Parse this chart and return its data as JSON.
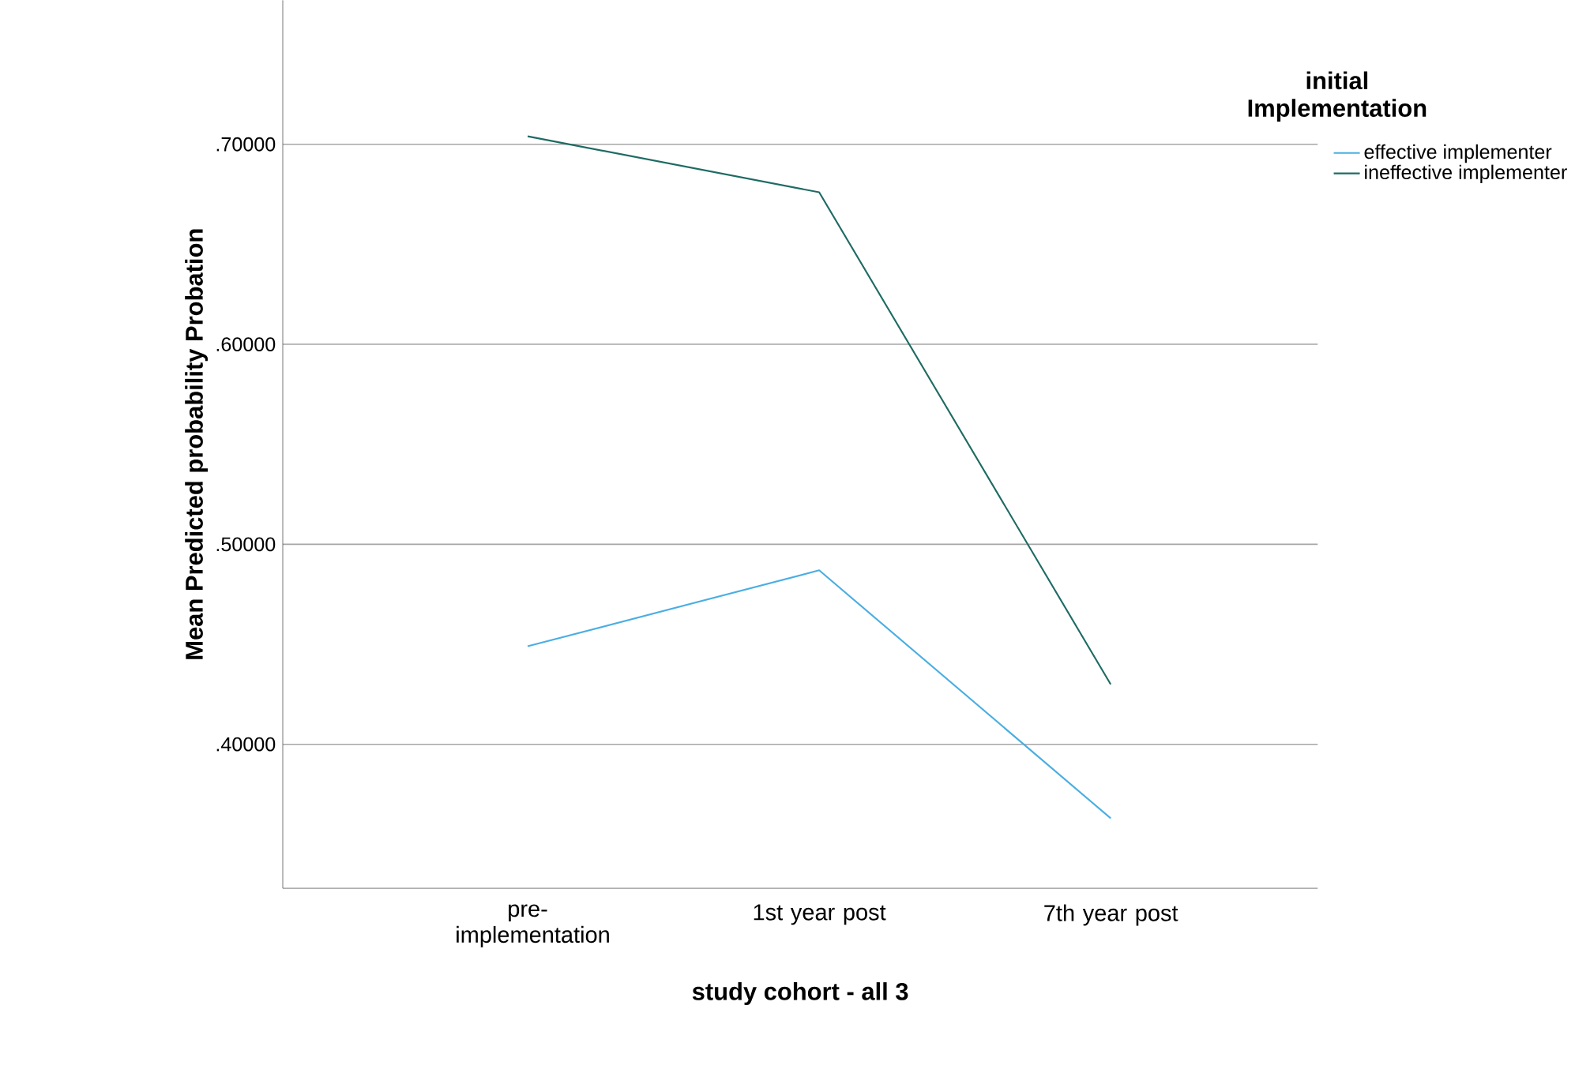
{
  "chart_data": {
    "type": "line",
    "xlabel": "study cohort - all 3",
    "ylabel": "Mean Predicted probability Probation",
    "legend_title": "initial Implementation",
    "categories": [
      "pre-implementation",
      "1st year post",
      "7th year post"
    ],
    "series": [
      {
        "name": "effective implementer",
        "color": "#4aaee3",
        "values": [
          0.449,
          0.487,
          0.363
        ]
      },
      {
        "name": "ineffective implementer",
        "color": "#1e6b63",
        "values": [
          0.704,
          0.676,
          0.43
        ]
      }
    ],
    "ylim": [
      0.328,
      0.772
    ],
    "yticks": [
      {
        "value": 0.4,
        "label": ".40000"
      },
      {
        "value": 0.5,
        "label": ".50000"
      },
      {
        "value": 0.6,
        "label": ".60000"
      },
      {
        "value": 0.7,
        "label": ".70000"
      }
    ],
    "grid": "y",
    "legend": "top right",
    "marker": "none",
    "line_style": "solid"
  }
}
